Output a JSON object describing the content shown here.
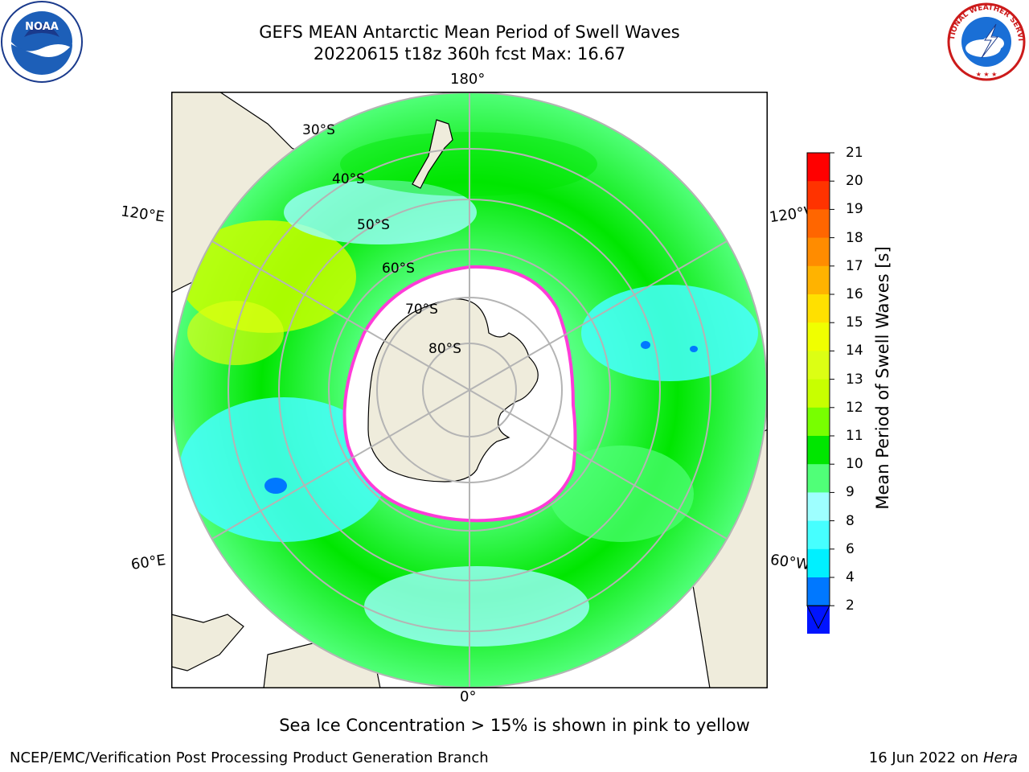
{
  "title": {
    "line1": "GEFS MEAN Antarctic Mean Period of Swell Waves",
    "line2": "20220615 t18z 360h fcst   Max: 16.67"
  },
  "map": {
    "projection": "south-polar-stereographic",
    "lon_labels": {
      "top": "180°",
      "bottom": "0°",
      "left_upper": "120°E",
      "right_upper": "120°W",
      "left_lower": "60°E",
      "right_lower": "60°W"
    },
    "lat_labels": [
      "30°S",
      "40°S",
      "50°S",
      "60°S",
      "70°S",
      "80°S"
    ],
    "colors": {
      "land": "#efecdc",
      "sea_ice": "#ffffff",
      "ice_edge": "#ff3cd8",
      "graticule": "#b4b4b4"
    }
  },
  "colorbar": {
    "title": "Mean Period of Swell Waves [s]",
    "ticks": [
      "21",
      "20",
      "19",
      "18",
      "17",
      "16",
      "15",
      "14",
      "13",
      "12",
      "11",
      "10",
      "9",
      "8",
      "6",
      "4",
      "2"
    ],
    "colors": [
      "#ff0000",
      "#ff3300",
      "#ff6600",
      "#ff8c00",
      "#ffb300",
      "#ffe000",
      "#f0ff00",
      "#dcff14",
      "#c8ff00",
      "#78ff00",
      "#00e600",
      "#50ff78",
      "#9effff",
      "#46ffff",
      "#00f0ff",
      "#0078ff",
      "#0014ff"
    ]
  },
  "note": "Sea Ice Concentration > 15% is shown in pink to yellow",
  "footer": {
    "left": "NCEP/EMC/Verification Post Processing Product Generation Branch",
    "right_date": "16 Jun 2022 on ",
    "right_host": "Hera"
  },
  "logos": {
    "noaa": "NOAA",
    "nws_ring": "NATIONAL WEATHER SERVICE"
  }
}
